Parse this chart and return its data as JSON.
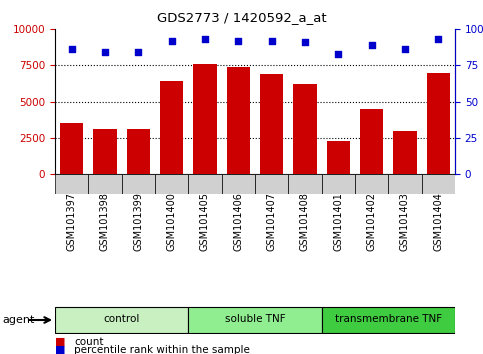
{
  "title": "GDS2773 / 1420592_a_at",
  "samples": [
    "GSM101397",
    "GSM101398",
    "GSM101399",
    "GSM101400",
    "GSM101405",
    "GSM101406",
    "GSM101407",
    "GSM101408",
    "GSM101401",
    "GSM101402",
    "GSM101403",
    "GSM101404"
  ],
  "counts": [
    3500,
    3100,
    3100,
    6400,
    7600,
    7400,
    6900,
    6200,
    2300,
    4500,
    3000,
    7000
  ],
  "percentiles": [
    86,
    84,
    84,
    92,
    93,
    92,
    92,
    91,
    83,
    89,
    86,
    93
  ],
  "groups": [
    {
      "label": "control",
      "start": 0,
      "end": 4,
      "color": "#c8f0c0"
    },
    {
      "label": "soluble TNF",
      "start": 4,
      "end": 8,
      "color": "#90ee90"
    },
    {
      "label": "transmembrane TNF",
      "start": 8,
      "end": 12,
      "color": "#40cc40"
    }
  ],
  "bar_color": "#cc0000",
  "dot_color": "#0000cc",
  "ylim_left": [
    0,
    10000
  ],
  "ylim_right": [
    0,
    100
  ],
  "yticks_left": [
    0,
    2500,
    5000,
    7500,
    10000
  ],
  "yticks_right": [
    0,
    25,
    50,
    75,
    100
  ],
  "background_color": "#ffffff",
  "agent_label": "agent",
  "legend_count": "count",
  "legend_percentile": "percentile rank within the sample",
  "cell_color": "#d0d0d0"
}
